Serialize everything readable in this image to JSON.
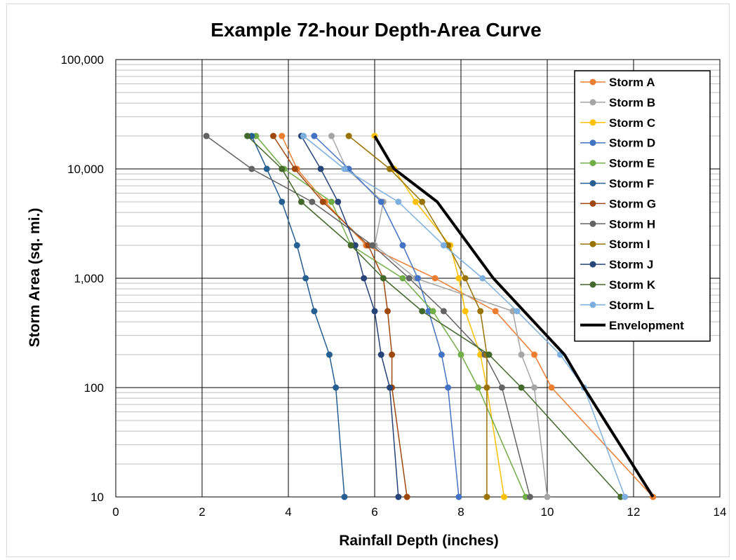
{
  "chart_data": {
    "type": "line",
    "title": "Example 72-hour Depth-Area Curve",
    "xlabel": "Rainfall Depth (inches)",
    "ylabel": "Storm Area (sq. mi.)",
    "xlim": [
      0,
      14
    ],
    "ylim": [
      10,
      100000
    ],
    "yscale": "log",
    "grid": true,
    "legend": "top-right",
    "x_ticks": [
      "0",
      "2",
      "4",
      "6",
      "8",
      "10",
      "12",
      "14"
    ],
    "y_ticks": [
      "10",
      "100",
      "1,000",
      "10,000",
      "100,000"
    ],
    "series": [
      {
        "name": "Storm A",
        "color": "#ed7d31",
        "points": [
          [
            3.85,
            20000
          ],
          [
            4.2,
            10000
          ],
          [
            4.85,
            5000
          ],
          [
            5.8,
            2000
          ],
          [
            7.4,
            1000
          ],
          [
            8.8,
            500
          ],
          [
            9.7,
            200
          ],
          [
            10.1,
            100
          ],
          [
            12.45,
            10
          ]
        ]
      },
      {
        "name": "Storm B",
        "color": "#a5a5a5",
        "points": [
          [
            5.0,
            20000
          ],
          [
            5.35,
            10000
          ],
          [
            6.2,
            5000
          ],
          [
            6.0,
            2000
          ],
          [
            6.95,
            1000
          ],
          [
            9.2,
            500
          ],
          [
            9.4,
            200
          ],
          [
            9.7,
            100
          ],
          [
            10.0,
            10
          ]
        ]
      },
      {
        "name": "Storm C",
        "color": "#ffc000",
        "points": [
          [
            6.0,
            20000
          ],
          [
            6.45,
            10000
          ],
          [
            6.95,
            5000
          ],
          [
            7.75,
            2000
          ],
          [
            7.95,
            1000
          ],
          [
            8.1,
            500
          ],
          [
            8.45,
            200
          ],
          [
            8.6,
            100
          ],
          [
            9.0,
            10
          ]
        ]
      },
      {
        "name": "Storm D",
        "color": "#4472c4",
        "points": [
          [
            4.6,
            20000
          ],
          [
            5.4,
            10000
          ],
          [
            6.15,
            5000
          ],
          [
            6.65,
            2000
          ],
          [
            7.0,
            1000
          ],
          [
            7.25,
            500
          ],
          [
            7.55,
            200
          ],
          [
            7.7,
            100
          ],
          [
            7.95,
            10
          ]
        ]
      },
      {
        "name": "Storm E",
        "color": "#70ad47",
        "points": [
          [
            3.25,
            20000
          ],
          [
            3.9,
            10000
          ],
          [
            5.0,
            5000
          ],
          [
            5.45,
            2000
          ],
          [
            6.65,
            1000
          ],
          [
            7.35,
            500
          ],
          [
            8.0,
            200
          ],
          [
            8.4,
            100
          ],
          [
            9.5,
            10
          ]
        ]
      },
      {
        "name": "Storm F",
        "color": "#255e91",
        "points": [
          [
            3.15,
            20000
          ],
          [
            3.5,
            10000
          ],
          [
            3.85,
            5000
          ],
          [
            4.2,
            2000
          ],
          [
            4.4,
            1000
          ],
          [
            4.6,
            500
          ],
          [
            4.95,
            200
          ],
          [
            5.1,
            100
          ],
          [
            5.3,
            10
          ]
        ]
      },
      {
        "name": "Storm G",
        "color": "#9e480e",
        "points": [
          [
            3.65,
            20000
          ],
          [
            4.15,
            10000
          ],
          [
            4.8,
            5000
          ],
          [
            5.85,
            2000
          ],
          [
            6.2,
            1000
          ],
          [
            6.3,
            500
          ],
          [
            6.4,
            200
          ],
          [
            6.4,
            100
          ],
          [
            6.75,
            10
          ]
        ]
      },
      {
        "name": "Storm H",
        "color": "#636363",
        "points": [
          [
            2.1,
            20000
          ],
          [
            3.15,
            10000
          ],
          [
            4.55,
            5000
          ],
          [
            5.95,
            2000
          ],
          [
            6.8,
            1000
          ],
          [
            7.6,
            500
          ],
          [
            8.55,
            200
          ],
          [
            8.95,
            100
          ],
          [
            9.6,
            10
          ]
        ]
      },
      {
        "name": "Storm I",
        "color": "#997300",
        "points": [
          [
            5.4,
            20000
          ],
          [
            6.35,
            10000
          ],
          [
            7.1,
            5000
          ],
          [
            7.7,
            2000
          ],
          [
            8.1,
            1000
          ],
          [
            8.45,
            500
          ],
          [
            8.6,
            200
          ],
          [
            8.6,
            100
          ],
          [
            8.6,
            10
          ]
        ]
      },
      {
        "name": "Storm J",
        "color": "#264478",
        "points": [
          [
            4.3,
            20000
          ],
          [
            4.75,
            10000
          ],
          [
            5.15,
            5000
          ],
          [
            5.55,
            2000
          ],
          [
            5.75,
            1000
          ],
          [
            6.0,
            500
          ],
          [
            6.15,
            200
          ],
          [
            6.35,
            100
          ],
          [
            6.55,
            10
          ]
        ]
      },
      {
        "name": "Storm K",
        "color": "#43682b",
        "points": [
          [
            3.05,
            20000
          ],
          [
            3.85,
            10000
          ],
          [
            4.3,
            5000
          ],
          [
            5.45,
            2000
          ],
          [
            6.2,
            1000
          ],
          [
            7.1,
            500
          ],
          [
            8.65,
            200
          ],
          [
            9.4,
            100
          ],
          [
            11.7,
            10
          ]
        ]
      },
      {
        "name": "Storm L",
        "color": "#7cafdd",
        "points": [
          [
            4.35,
            20000
          ],
          [
            5.3,
            10000
          ],
          [
            6.55,
            5000
          ],
          [
            7.6,
            2000
          ],
          [
            8.5,
            1000
          ],
          [
            9.3,
            500
          ],
          [
            10.3,
            200
          ],
          [
            10.85,
            100
          ],
          [
            11.8,
            10
          ]
        ]
      },
      {
        "name": "Envelopment",
        "color": "#000000",
        "points": [
          [
            6.0,
            20000
          ],
          [
            6.45,
            10000
          ],
          [
            7.45,
            5000
          ],
          [
            8.75,
            1000
          ],
          [
            10.4,
            200
          ],
          [
            10.85,
            100
          ],
          [
            12.45,
            10
          ]
        ],
        "thick": true
      }
    ]
  }
}
